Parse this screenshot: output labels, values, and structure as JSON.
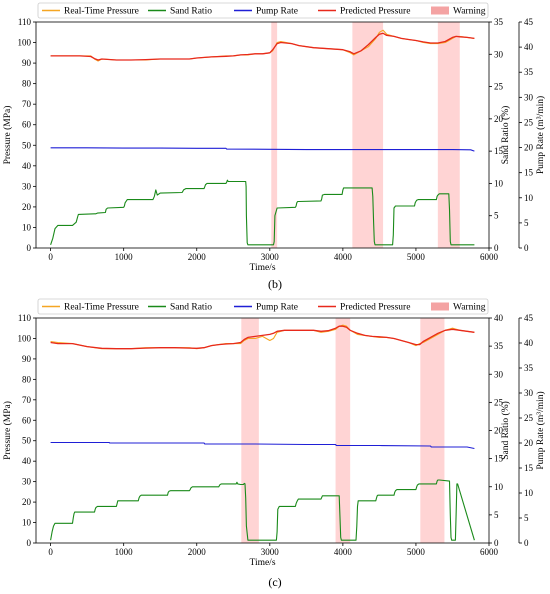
{
  "legend_labels": [
    "Real-Time Pressure",
    "Sand Ratio",
    "Pump Rate",
    "Predicted Pressure",
    "Warning"
  ],
  "colors": {
    "real_time": "#f5a623",
    "sand": "#1a8a1a",
    "pump": "#1f1fd6",
    "predicted": "#e8291c",
    "warning": "#ffcccc",
    "warning_legend": "#f4a3a3"
  },
  "chart_data": [
    {
      "type": "line",
      "caption": "(b)",
      "xlabel": "Time/s",
      "ylabel_left": "Pressure (MPa)",
      "ylabel_mid": "Sand Ratio (%)",
      "ylabel_right": "Pump Rate (m³/min)",
      "xlim": [
        -200,
        6000
      ],
      "x_ticks": [
        0,
        1000,
        2000,
        3000,
        4000,
        5000,
        6000
      ],
      "pressure_ylim": [
        0,
        110
      ],
      "pressure_ticks": [
        0,
        10,
        20,
        30,
        40,
        50,
        60,
        70,
        80,
        90,
        100,
        110
      ],
      "sand_ylim": [
        0,
        35
      ],
      "sand_ticks": [
        0,
        5,
        10,
        15,
        20,
        25,
        30,
        35
      ],
      "pump_ylim": [
        0,
        45
      ],
      "pump_ticks": [
        0,
        5,
        10,
        15,
        20,
        25,
        30,
        35,
        40,
        45
      ],
      "warning_regions": [
        [
          3020,
          3100
        ],
        [
          4130,
          4550
        ],
        [
          5300,
          5600
        ]
      ],
      "series": [
        {
          "name": "Real-Time Pressure",
          "axis": "pressure",
          "x": [
            0,
            400,
            550,
            600,
            650,
            700,
            900,
            1100,
            1300,
            1500,
            1700,
            1900,
            2000,
            2200,
            2400,
            2500,
            2600,
            2700,
            2800,
            2900,
            3000,
            3040,
            3100,
            3150,
            3300,
            3400,
            3600,
            3800,
            4000,
            4100,
            4150,
            4250,
            4350,
            4450,
            4500,
            4550,
            4600,
            4700,
            4800,
            4900,
            5000,
            5100,
            5200,
            5300,
            5400,
            5450,
            5500,
            5550,
            5600,
            5700,
            5800
          ],
          "y": [
            93.5,
            93.5,
            93.5,
            92,
            91,
            92,
            91.5,
            91.5,
            91.5,
            92,
            92,
            92,
            92.5,
            93,
            93.5,
            93.5,
            94,
            94,
            94.5,
            94.5,
            95,
            96,
            100,
            100.5,
            99.5,
            98.5,
            97.5,
            97,
            96.5,
            95,
            94,
            96,
            98,
            102,
            105,
            106,
            104,
            103,
            102,
            101.5,
            101,
            100,
            99.5,
            99.5,
            100,
            101,
            102,
            103,
            103,
            102.5,
            102
          ]
        },
        {
          "name": "Predicted Pressure",
          "axis": "pressure",
          "x": [
            0,
            400,
            550,
            600,
            650,
            700,
            900,
            1100,
            1300,
            1500,
            1700,
            1900,
            2000,
            2200,
            2400,
            2500,
            2600,
            2700,
            2800,
            2900,
            3000,
            3040,
            3100,
            3150,
            3300,
            3400,
            3600,
            3800,
            4000,
            4100,
            4150,
            4250,
            4350,
            4450,
            4500,
            4550,
            4600,
            4700,
            4800,
            4900,
            5000,
            5100,
            5200,
            5300,
            5400,
            5450,
            5500,
            5550,
            5600,
            5700,
            5800
          ],
          "y": [
            93.5,
            93.5,
            93.2,
            92.2,
            91.5,
            92,
            91.5,
            91.5,
            91.7,
            92,
            92,
            92,
            92.5,
            93,
            93.3,
            93.5,
            94,
            94.2,
            94.5,
            94.5,
            95,
            96.5,
            99.5,
            100,
            99.5,
            98.5,
            97.5,
            97,
            96.5,
            95.5,
            94.5,
            96,
            99,
            102.5,
            104,
            104.5,
            103.5,
            103,
            102,
            101.5,
            101,
            100.3,
            99.8,
            99.8,
            100.5,
            101.5,
            102.5,
            103,
            102.8,
            102.5,
            102
          ]
        },
        {
          "name": "Sand Ratio",
          "axis": "sand",
          "x": [
            0,
            30,
            60,
            100,
            300,
            350,
            370,
            380,
            600,
            620,
            640,
            750,
            760,
            780,
            1000,
            1010,
            1020,
            1050,
            1400,
            1420,
            1440,
            1460,
            1500,
            1800,
            1810,
            1820,
            1850,
            2100,
            2110,
            2120,
            2140,
            2400,
            2410,
            2420,
            2430,
            2470,
            2670,
            2675,
            2680,
            2690,
            2700,
            2720,
            3050,
            3060,
            3070,
            3100,
            3350,
            3360,
            3370,
            3380,
            3400,
            3700,
            3710,
            3720,
            3750,
            3990,
            4000,
            4010,
            4040,
            4400,
            4410,
            4420,
            4430,
            4440,
            4680,
            4690,
            4700,
            4720,
            4980,
            4990,
            5000,
            5010,
            5030,
            5280,
            5290,
            5300,
            5320,
            5450,
            5460,
            5470,
            5480,
            5800
          ],
          "y": [
            0.5,
            1.5,
            3,
            3.5,
            3.5,
            4,
            4.8,
            5.2,
            5.3,
            5.3,
            5.4,
            5.5,
            6,
            6.2,
            6.3,
            6.5,
            7,
            7.5,
            7.5,
            8,
            9,
            8.2,
            8.5,
            8.6,
            8.8,
            9,
            9.2,
            9.2,
            9.5,
            9.8,
            10,
            10,
            10.2,
            10.5,
            10.3,
            10.3,
            10.3,
            9.5,
            5,
            0.8,
            0.5,
            0.5,
            0.5,
            1,
            5,
            6.2,
            6.3,
            6.5,
            7,
            7.2,
            7.2,
            7.3,
            7.6,
            8.2,
            8.3,
            8.3,
            9,
            9.3,
            9.3,
            9.3,
            8,
            4,
            1,
            0.5,
            0.5,
            2,
            6.2,
            6.5,
            6.5,
            7,
            7.2,
            7.4,
            7.5,
            7.5,
            8,
            8.2,
            8.4,
            8.4,
            6,
            1,
            0.5,
            0.5
          ]
        },
        {
          "name": "Pump Rate",
          "axis": "pump",
          "x": [
            0,
            500,
            1000,
            1500,
            2000,
            2400,
            2410,
            3000,
            3500,
            4000,
            4500,
            5000,
            5500,
            5750,
            5800
          ],
          "y": [
            19.95,
            19.95,
            19.9,
            19.9,
            19.85,
            19.85,
            19.7,
            19.65,
            19.6,
            19.6,
            19.6,
            19.6,
            19.6,
            19.55,
            19.3
          ]
        }
      ]
    },
    {
      "type": "line",
      "caption": "(c)",
      "xlabel": "Time/s",
      "ylabel_left": "Pressure (MPa)",
      "ylabel_mid": "Sand Ratio (%)",
      "ylabel_right": "Pump Rate (m³/min)",
      "xlim": [
        -200,
        6000
      ],
      "x_ticks": [
        0,
        1000,
        2000,
        3000,
        4000,
        5000,
        6000
      ],
      "pressure_ylim": [
        0,
        110
      ],
      "pressure_ticks": [
        0,
        10,
        20,
        30,
        40,
        50,
        60,
        70,
        80,
        90,
        100,
        110
      ],
      "sand_ylim": [
        0,
        40
      ],
      "sand_ticks": [
        0,
        5,
        10,
        15,
        20,
        25,
        30,
        35,
        40
      ],
      "pump_ylim": [
        0,
        45
      ],
      "pump_ticks": [
        0,
        5,
        10,
        15,
        20,
        25,
        30,
        35,
        40,
        45
      ],
      "warning_regions": [
        [
          2610,
          2850
        ],
        [
          3900,
          4100
        ],
        [
          5060,
          5390
        ]
      ],
      "series": [
        {
          "name": "Real-Time Pressure",
          "axis": "pressure",
          "x": [
            0,
            100,
            300,
            500,
            700,
            900,
            1100,
            1300,
            1500,
            1700,
            1900,
            2000,
            2100,
            2200,
            2300,
            2400,
            2500,
            2600,
            2650,
            2700,
            2800,
            2900,
            3000,
            3050,
            3100,
            3200,
            3400,
            3600,
            3700,
            3800,
            3900,
            3950,
            4000,
            4050,
            4100,
            4200,
            4300,
            4400,
            4500,
            4600,
            4700,
            4800,
            4900,
            5000,
            5050,
            5100,
            5200,
            5300,
            5400,
            5500,
            5600,
            5700,
            5800
          ],
          "y": [
            98.5,
            98,
            97.5,
            96,
            95,
            95,
            95,
            95.5,
            95.5,
            95.5,
            95.5,
            95,
            95.5,
            96.5,
            97,
            97.5,
            97.5,
            97.5,
            99,
            100,
            100,
            101,
            99,
            100,
            103,
            104,
            104,
            104,
            103,
            103.5,
            104.5,
            106,
            106.5,
            106,
            104,
            102,
            101.5,
            101,
            100.5,
            100.5,
            100,
            99,
            98,
            96.5,
            97.5,
            98,
            100,
            102,
            104,
            105,
            104,
            103.5,
            103
          ]
        },
        {
          "name": "Predicted Pressure",
          "axis": "pressure",
          "x": [
            0,
            100,
            300,
            500,
            700,
            900,
            1100,
            1300,
            1500,
            1700,
            1900,
            2000,
            2100,
            2200,
            2300,
            2400,
            2500,
            2600,
            2650,
            2700,
            2800,
            2900,
            3000,
            3050,
            3100,
            3200,
            3400,
            3600,
            3700,
            3800,
            3900,
            3950,
            4000,
            4050,
            4100,
            4200,
            4300,
            4400,
            4500,
            4600,
            4700,
            4800,
            4900,
            5000,
            5050,
            5100,
            5200,
            5300,
            5400,
            5500,
            5600,
            5700,
            5800
          ],
          "y": [
            98,
            97.5,
            97.5,
            96,
            95.2,
            95,
            95,
            95.3,
            95.5,
            95.5,
            95.3,
            95.2,
            95.5,
            96.5,
            97,
            97.3,
            97.5,
            98,
            99.5,
            100.5,
            101,
            101.5,
            102,
            102.5,
            103.5,
            104,
            104,
            104,
            103.5,
            103.8,
            105,
            106,
            106,
            105.5,
            104,
            102.5,
            101.5,
            101,
            100.8,
            100.5,
            100,
            99,
            98,
            97,
            97,
            98.5,
            100.5,
            102.5,
            104,
            104.5,
            104,
            103.5,
            103
          ]
        },
        {
          "name": "Sand Ratio",
          "axis": "sand",
          "x": [
            0,
            20,
            40,
            60,
            80,
            300,
            310,
            320,
            330,
            600,
            610,
            620,
            640,
            900,
            910,
            920,
            940,
            1200,
            1210,
            1220,
            1240,
            1600,
            1610,
            1620,
            1640,
            1900,
            1910,
            1920,
            1940,
            2300,
            2310,
            2320,
            2340,
            2540,
            2550,
            2560,
            2600,
            2640,
            2650,
            2660,
            2670,
            2680,
            2700,
            3090,
            3100,
            3110,
            3130,
            3350,
            3360,
            3370,
            3380,
            3390,
            3700,
            3710,
            3720,
            3740,
            3950,
            3960,
            3970,
            3980,
            3990,
            4180,
            4190,
            4200,
            4210,
            4220,
            4450,
            4460,
            4470,
            4480,
            4700,
            4710,
            4720,
            4740,
            5000,
            5010,
            5020,
            5040,
            5280,
            5290,
            5300,
            5320,
            5460,
            5470,
            5480,
            5490,
            5540,
            5550,
            5560,
            5570,
            5800
          ],
          "y": [
            0.5,
            2,
            3,
            3.5,
            3.5,
            3.5,
            4.5,
            5.2,
            5.5,
            5.5,
            6,
            6.3,
            6.5,
            6.5,
            7,
            7.5,
            7.5,
            7.5,
            8,
            8.3,
            8.5,
            8.5,
            9,
            9.2,
            9.3,
            9.3,
            9.5,
            9.8,
            10,
            10,
            10.2,
            10.4,
            10.5,
            10.5,
            10.8,
            10.5,
            10.4,
            10.4,
            10.6,
            10.5,
            8,
            3,
            0.5,
            0.5,
            2,
            6,
            6.5,
            6.5,
            7,
            7.3,
            7.6,
            7.8,
            7.8,
            8.1,
            8.4,
            8.4,
            8.4,
            5,
            1,
            0.5,
            0.5,
            0.5,
            3,
            6.5,
            7.5,
            7.5,
            7.5,
            8,
            8.4,
            8.5,
            8.5,
            9,
            9.3,
            9.5,
            9.5,
            10,
            10.3,
            10.5,
            10.5,
            11,
            11.2,
            11.2,
            11,
            5,
            1,
            0.5,
            0.5,
            5,
            10.5,
            10.5,
            0.5
          ]
        },
        {
          "name": "Pump Rate",
          "axis": "pump",
          "x": [
            0,
            500,
            800,
            810,
            1500,
            2100,
            2110,
            2800,
            3500,
            3900,
            3910,
            4500,
            5200,
            5210,
            5700,
            5800
          ],
          "y": [
            20.1,
            20.1,
            20.1,
            20.0,
            20.0,
            20.0,
            19.8,
            19.8,
            19.7,
            19.7,
            19.5,
            19.5,
            19.4,
            19.2,
            19.2,
            18.9
          ]
        }
      ]
    }
  ]
}
